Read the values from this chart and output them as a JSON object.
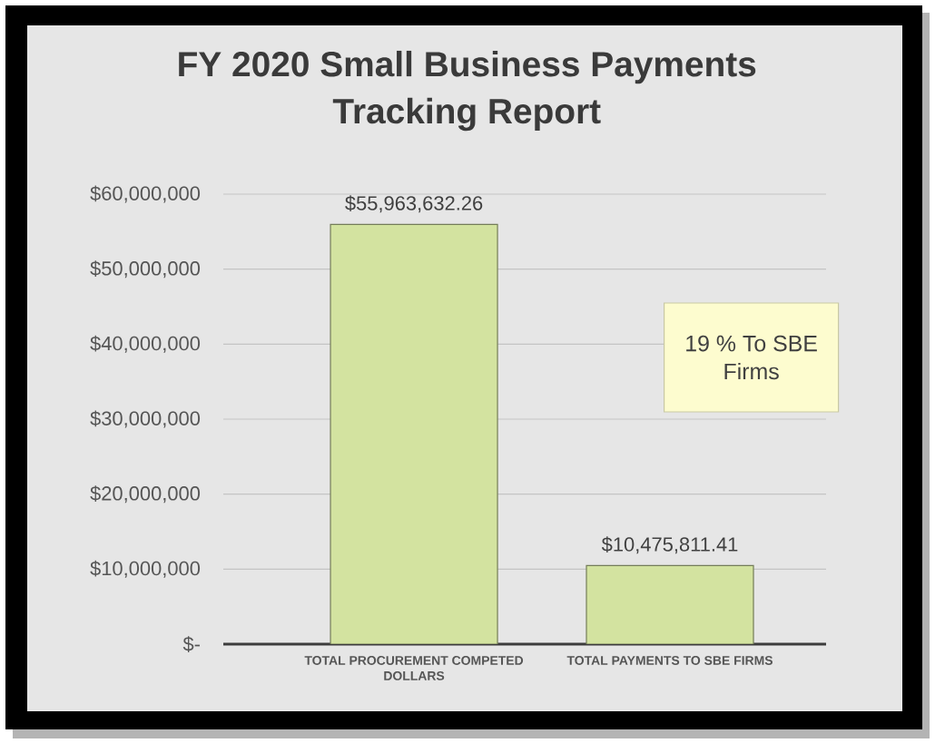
{
  "chart_data": {
    "type": "bar",
    "title": "FY 2020 Small Business Payments Tracking Report",
    "categories": [
      "TOTAL PROCUREMENT COMPETED DOLLARS",
      "TOTAL PAYMENTS TO SBE FIRMS"
    ],
    "values": [
      55963632.26,
      10475811.41
    ],
    "color": "#d3e3a0",
    "value_labels": [
      "$55,963,632.26",
      "$10,475,811.41"
    ],
    "ylim": [
      0,
      60000000
    ],
    "yticks": [
      {
        "value": 0,
        "label": "$-"
      },
      {
        "value": 10000000,
        "label": "$10,000,000"
      },
      {
        "value": 20000000,
        "label": "$20,000,000"
      },
      {
        "value": 30000000,
        "label": "$30,000,000"
      },
      {
        "value": 40000000,
        "label": "$40,000,000"
      },
      {
        "value": 50000000,
        "label": "$50,000,000"
      },
      {
        "value": 60000000,
        "label": "$60,000,000"
      }
    ],
    "grid": "y",
    "annotations": [
      "19 % To SBE Firms"
    ]
  }
}
